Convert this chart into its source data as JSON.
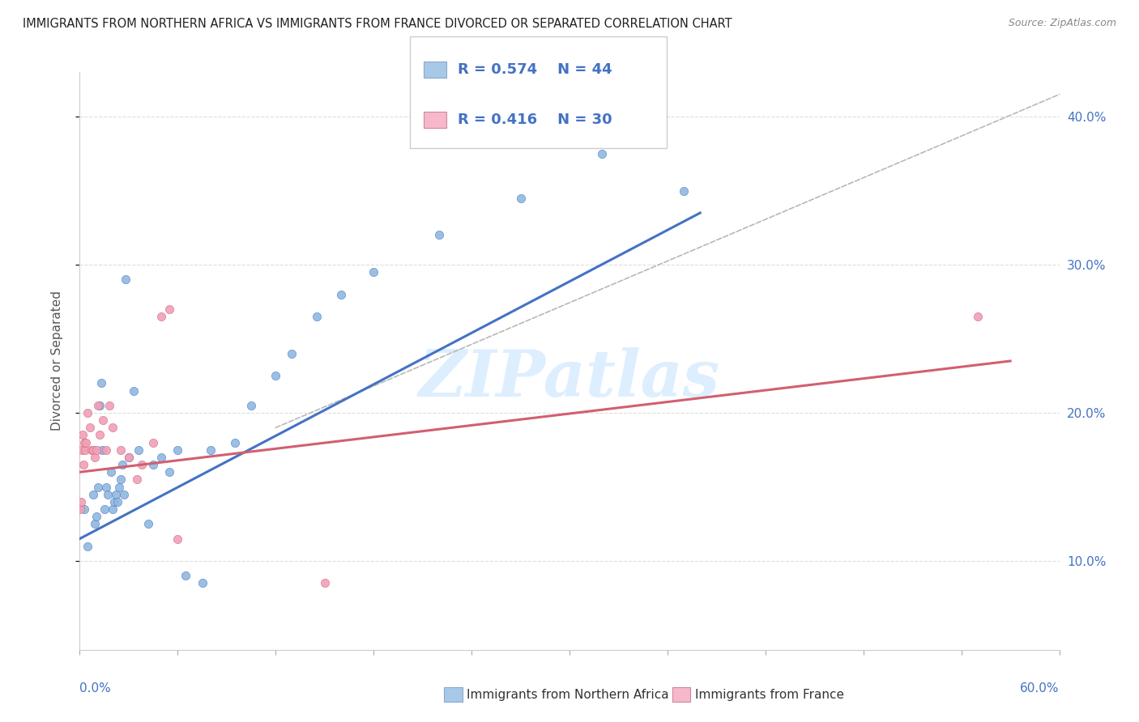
{
  "title": "IMMIGRANTS FROM NORTHERN AFRICA VS IMMIGRANTS FROM FRANCE DIVORCED OR SEPARATED CORRELATION CHART",
  "source": "Source: ZipAtlas.com",
  "ylabel": "Divorced or Separated",
  "legend1_R": "R = 0.574",
  "legend1_N": "N = 44",
  "legend2_R": "R = 0.416",
  "legend2_N": "N = 30",
  "legend1_color": "#a8c8e8",
  "legend2_color": "#f8b8cc",
  "blue_dot_color": "#90b8e0",
  "pink_dot_color": "#f0a0b8",
  "blue_line_color": "#4472c4",
  "pink_line_color": "#d06070",
  "dashed_line_color": "#b8b8b8",
  "watermark_text": "ZIPatlas",
  "watermark_color": "#ddeeff",
  "blue_scatter": [
    [
      0.3,
      13.5
    ],
    [
      0.5,
      11.0
    ],
    [
      0.8,
      14.5
    ],
    [
      0.9,
      12.5
    ],
    [
      1.0,
      13.0
    ],
    [
      1.1,
      15.0
    ],
    [
      1.2,
      20.5
    ],
    [
      1.3,
      22.0
    ],
    [
      1.35,
      17.5
    ],
    [
      1.5,
      13.5
    ],
    [
      1.6,
      15.0
    ],
    [
      1.7,
      14.5
    ],
    [
      1.9,
      16.0
    ],
    [
      2.0,
      13.5
    ],
    [
      2.1,
      14.0
    ],
    [
      2.2,
      14.5
    ],
    [
      2.3,
      14.0
    ],
    [
      2.4,
      15.0
    ],
    [
      2.5,
      15.5
    ],
    [
      2.6,
      16.5
    ],
    [
      2.7,
      14.5
    ],
    [
      2.8,
      29.0
    ],
    [
      3.0,
      17.0
    ],
    [
      3.3,
      21.5
    ],
    [
      3.6,
      17.5
    ],
    [
      4.2,
      12.5
    ],
    [
      4.5,
      16.5
    ],
    [
      5.0,
      17.0
    ],
    [
      5.5,
      16.0
    ],
    [
      6.0,
      17.5
    ],
    [
      6.5,
      9.0
    ],
    [
      7.5,
      8.5
    ],
    [
      8.0,
      17.5
    ],
    [
      9.5,
      18.0
    ],
    [
      10.5,
      20.5
    ],
    [
      12.0,
      22.5
    ],
    [
      13.0,
      24.0
    ],
    [
      14.5,
      26.5
    ],
    [
      16.0,
      28.0
    ],
    [
      18.0,
      29.5
    ],
    [
      22.0,
      32.0
    ],
    [
      27.0,
      34.5
    ],
    [
      32.0,
      37.5
    ],
    [
      37.0,
      35.0
    ]
  ],
  "pink_scatter": [
    [
      0.05,
      13.5
    ],
    [
      0.1,
      14.0
    ],
    [
      0.15,
      17.5
    ],
    [
      0.2,
      18.5
    ],
    [
      0.25,
      16.5
    ],
    [
      0.3,
      18.0
    ],
    [
      0.35,
      17.5
    ],
    [
      0.4,
      18.0
    ],
    [
      0.5,
      20.0
    ],
    [
      0.6,
      19.0
    ],
    [
      0.7,
      17.5
    ],
    [
      0.8,
      17.5
    ],
    [
      0.9,
      17.0
    ],
    [
      1.0,
      17.5
    ],
    [
      1.1,
      20.5
    ],
    [
      1.2,
      18.5
    ],
    [
      1.4,
      19.5
    ],
    [
      1.6,
      17.5
    ],
    [
      1.8,
      20.5
    ],
    [
      2.0,
      19.0
    ],
    [
      2.5,
      17.5
    ],
    [
      3.0,
      17.0
    ],
    [
      3.5,
      15.5
    ],
    [
      3.8,
      16.5
    ],
    [
      4.5,
      18.0
    ],
    [
      5.0,
      26.5
    ],
    [
      5.5,
      27.0
    ],
    [
      6.0,
      11.5
    ],
    [
      15.0,
      8.5
    ],
    [
      55.0,
      26.5
    ]
  ],
  "blue_line_x": [
    0,
    38
  ],
  "blue_line_y": [
    11.5,
    33.5
  ],
  "pink_line_x": [
    0,
    57
  ],
  "pink_line_y": [
    16.0,
    23.5
  ],
  "dashed_line_x": [
    12,
    60
  ],
  "dashed_line_y": [
    19.0,
    41.5
  ],
  "xmin": 0,
  "xmax": 60,
  "ymin": 4,
  "ymax": 43,
  "ytick_positions": [
    10,
    20,
    30,
    40
  ],
  "xtick_positions": [
    0,
    6,
    12,
    18,
    24,
    30,
    36,
    42,
    48,
    54,
    60
  ]
}
